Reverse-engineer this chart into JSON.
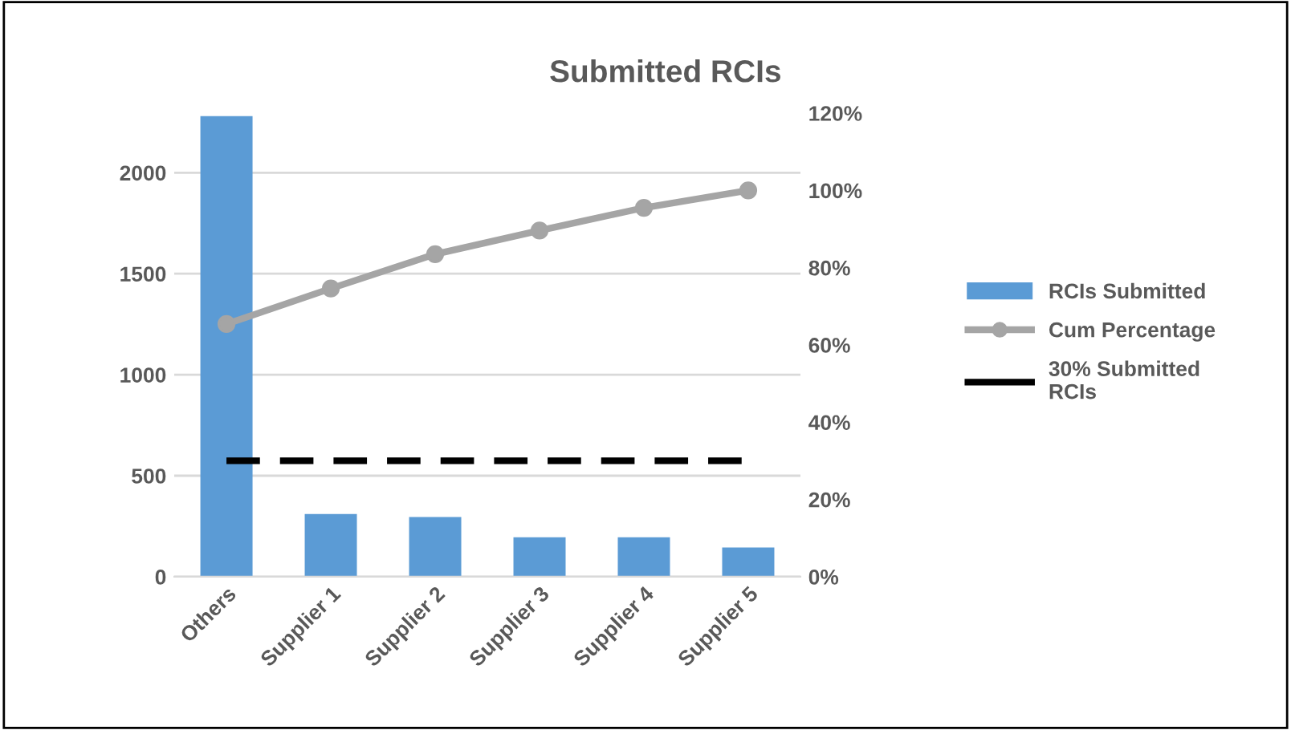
{
  "chart_data": {
    "type": "bar",
    "title": "Submitted RCIs",
    "categories": [
      "Others",
      "Supplier 1",
      "Supplier 2",
      "Supplier 3",
      "Supplier 4",
      "Supplier 5"
    ],
    "series": [
      {
        "name": "RCIs Submitted",
        "color": "#5b9bd5",
        "values": [
          2280,
          310,
          295,
          195,
          195,
          145
        ]
      },
      {
        "name": "Cum Percentage",
        "type": "line",
        "axis": "y2",
        "color": "#a5a5a5",
        "marker": "circle",
        "values": [
          65.4,
          74.6,
          83.5,
          89.6,
          95.5,
          100
        ]
      },
      {
        "name": "30% Submitted RCIs",
        "type": "line",
        "axis": "y2",
        "color": "#000000",
        "line_style": "dashed",
        "marker": "none",
        "values": [
          30,
          30,
          30,
          30,
          30,
          30
        ]
      }
    ],
    "ylim": [
      0,
      2295
    ],
    "yticks": [
      0,
      500,
      1000,
      1500,
      2000
    ],
    "y2lim": [
      0,
      120
    ],
    "y2ticks": [
      {
        "value": 0,
        "label": "0%"
      },
      {
        "value": 20,
        "label": "20%"
      },
      {
        "value": 40,
        "label": "40%"
      },
      {
        "value": 60,
        "label": "60%"
      },
      {
        "value": 80,
        "label": "80%"
      },
      {
        "value": 100,
        "label": "100%"
      },
      {
        "value": 120,
        "label": "120%"
      }
    ],
    "grid": "y",
    "legend": "right"
  }
}
